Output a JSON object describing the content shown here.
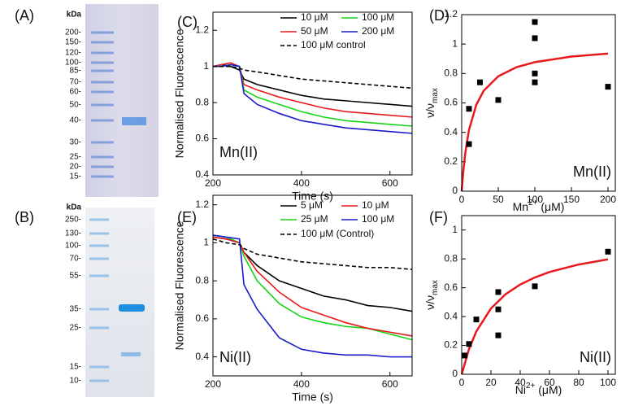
{
  "gels": [
    {
      "panel_label": "(A)",
      "unit": "kDa",
      "markers": [
        "200-",
        "150-",
        "120-",
        "100-",
        "85-",
        "70-",
        "60-",
        "50-",
        "40-",
        "30-",
        "25-",
        "20-",
        "15-"
      ]
    },
    {
      "panel_label": "(B)",
      "unit": "kDa",
      "markers": [
        "250-",
        "130-",
        "100-",
        "70-",
        "55-",
        "35-",
        "25-",
        "15-",
        "10-"
      ]
    }
  ],
  "chart_data": [
    {
      "type": "line",
      "panel_label": "(C)",
      "y_label": "Normalised Fluorescence",
      "x_label": "Time (s)",
      "annotation": "Mn(II)",
      "x": [
        200,
        220,
        240,
        260,
        270,
        300,
        350,
        400,
        450,
        500,
        550,
        600,
        650
      ],
      "xlim": [
        200,
        650
      ],
      "xticks": [
        200,
        400,
        600
      ],
      "ylim": [
        0.4,
        1.3
      ],
      "yticks": [
        0.4,
        0.6,
        0.8,
        1,
        1.2
      ],
      "series": [
        {
          "name": "10 μM",
          "color": "#000000",
          "values": [
            1.0,
            1.01,
            1.0,
            0.98,
            0.93,
            0.9,
            0.87,
            0.84,
            0.82,
            0.81,
            0.8,
            0.79,
            0.78
          ]
        },
        {
          "name": "50 μM",
          "color": "#e8191c",
          "values": [
            1.0,
            1.01,
            1.02,
            1.0,
            0.9,
            0.87,
            0.83,
            0.8,
            0.77,
            0.75,
            0.74,
            0.73,
            0.72
          ]
        },
        {
          "name": "100 μM",
          "color": "#16d416",
          "values": [
            1.0,
            1.0,
            1.01,
            1.0,
            0.87,
            0.83,
            0.79,
            0.75,
            0.72,
            0.7,
            0.69,
            0.68,
            0.67
          ]
        },
        {
          "name": "200 μM",
          "color": "#1a1acb",
          "values": [
            1.0,
            1.0,
            1.01,
            1.0,
            0.85,
            0.79,
            0.74,
            0.7,
            0.68,
            0.66,
            0.65,
            0.64,
            0.63
          ]
        },
        {
          "name": "100 μM control",
          "color": "#000000",
          "dashed": true,
          "values": [
            1.0,
            1.0,
            1.0,
            0.99,
            0.98,
            0.97,
            0.95,
            0.93,
            0.92,
            0.91,
            0.9,
            0.89,
            0.88
          ]
        }
      ]
    },
    {
      "type": "scatter",
      "panel_label": "(D)",
      "y_label": "ν/ν",
      "y_label_sub": "max",
      "x_label_main": "Mn",
      "x_label_sup": "2+",
      "x_label_unit": " (μM)",
      "annotation": "Mn(II)",
      "xlim": [
        0,
        210
      ],
      "xticks": [
        0,
        50,
        100,
        150,
        200
      ],
      "ylim": [
        0,
        1.2
      ],
      "yticks": [
        0,
        0.2,
        0.4,
        0.6,
        0.8,
        1,
        1.2
      ],
      "points": {
        "color": "#000000",
        "x": [
          10,
          10,
          25,
          50,
          100,
          100,
          100,
          100,
          200
        ],
        "values": [
          0.32,
          0.56,
          0.74,
          0.62,
          1.15,
          1.04,
          0.8,
          0.74,
          0.71
        ]
      },
      "fit": {
        "color": "#e8191c",
        "x": [
          0,
          2,
          5,
          10,
          20,
          30,
          50,
          75,
          100,
          150,
          200
        ],
        "values": [
          0,
          0.125,
          0.263,
          0.417,
          0.588,
          0.682,
          0.781,
          0.843,
          0.877,
          0.915,
          0.935
        ]
      }
    },
    {
      "type": "line",
      "panel_label": "(E)",
      "y_label": "Normalised Fluorescence",
      "x_label": "Time (s)",
      "annotation": "Ni(II)",
      "x": [
        200,
        230,
        260,
        270,
        300,
        350,
        400,
        450,
        500,
        550,
        600,
        650
      ],
      "xlim": [
        200,
        650
      ],
      "xticks": [
        200,
        400,
        600
      ],
      "ylim": [
        0.3,
        1.25
      ],
      "yticks": [
        0.4,
        0.6,
        0.8,
        1,
        1.2
      ],
      "series": [
        {
          "name": "5 μM",
          "color": "#000000",
          "values": [
            1.03,
            1.02,
            1.0,
            0.95,
            0.88,
            0.8,
            0.76,
            0.72,
            0.7,
            0.67,
            0.66,
            0.64
          ]
        },
        {
          "name": "25 μM",
          "color": "#16d416",
          "values": [
            1.04,
            1.03,
            1.0,
            0.93,
            0.8,
            0.68,
            0.61,
            0.58,
            0.56,
            0.55,
            0.52,
            0.49
          ]
        },
        {
          "name": "10 μM",
          "color": "#e8191c",
          "values": [
            1.03,
            1.02,
            1.0,
            0.95,
            0.85,
            0.74,
            0.66,
            0.62,
            0.58,
            0.55,
            0.53,
            0.51
          ]
        },
        {
          "name": "100 μM",
          "color": "#1a1acb",
          "values": [
            1.04,
            1.03,
            1.02,
            0.78,
            0.65,
            0.5,
            0.44,
            0.42,
            0.41,
            0.41,
            0.4,
            0.4
          ]
        },
        {
          "name": "100 μM (Control)",
          "color": "#000000",
          "dashed": true,
          "values": [
            1.02,
            1.0,
            0.99,
            0.97,
            0.94,
            0.92,
            0.9,
            0.89,
            0.88,
            0.87,
            0.87,
            0.86
          ]
        }
      ]
    },
    {
      "type": "scatter",
      "panel_label": "(F)",
      "y_label": "ν/ν",
      "y_label_sub": "max",
      "x_label_main": "Ni",
      "x_label_sup": "2+",
      "x_label_unit": " (μM)",
      "annotation": "Ni(II)",
      "xlim": [
        0,
        105
      ],
      "xticks": [
        0,
        20,
        40,
        60,
        80,
        100
      ],
      "ylim": [
        0,
        1.1
      ],
      "yticks": [
        0,
        0.2,
        0.4,
        0.6,
        0.8,
        1
      ],
      "points": {
        "color": "#000000",
        "x": [
          2,
          5,
          10,
          25,
          25,
          25,
          50,
          100
        ],
        "values": [
          0.13,
          0.21,
          0.38,
          0.57,
          0.45,
          0.27,
          0.61,
          0.85
        ]
      },
      "fit": {
        "color": "#e8191c",
        "x": [
          0,
          5,
          10,
          20,
          30,
          40,
          50,
          60,
          80,
          100
        ],
        "values": [
          0,
          0.175,
          0.297,
          0.456,
          0.555,
          0.622,
          0.671,
          0.709,
          0.761,
          0.797
        ]
      }
    }
  ]
}
